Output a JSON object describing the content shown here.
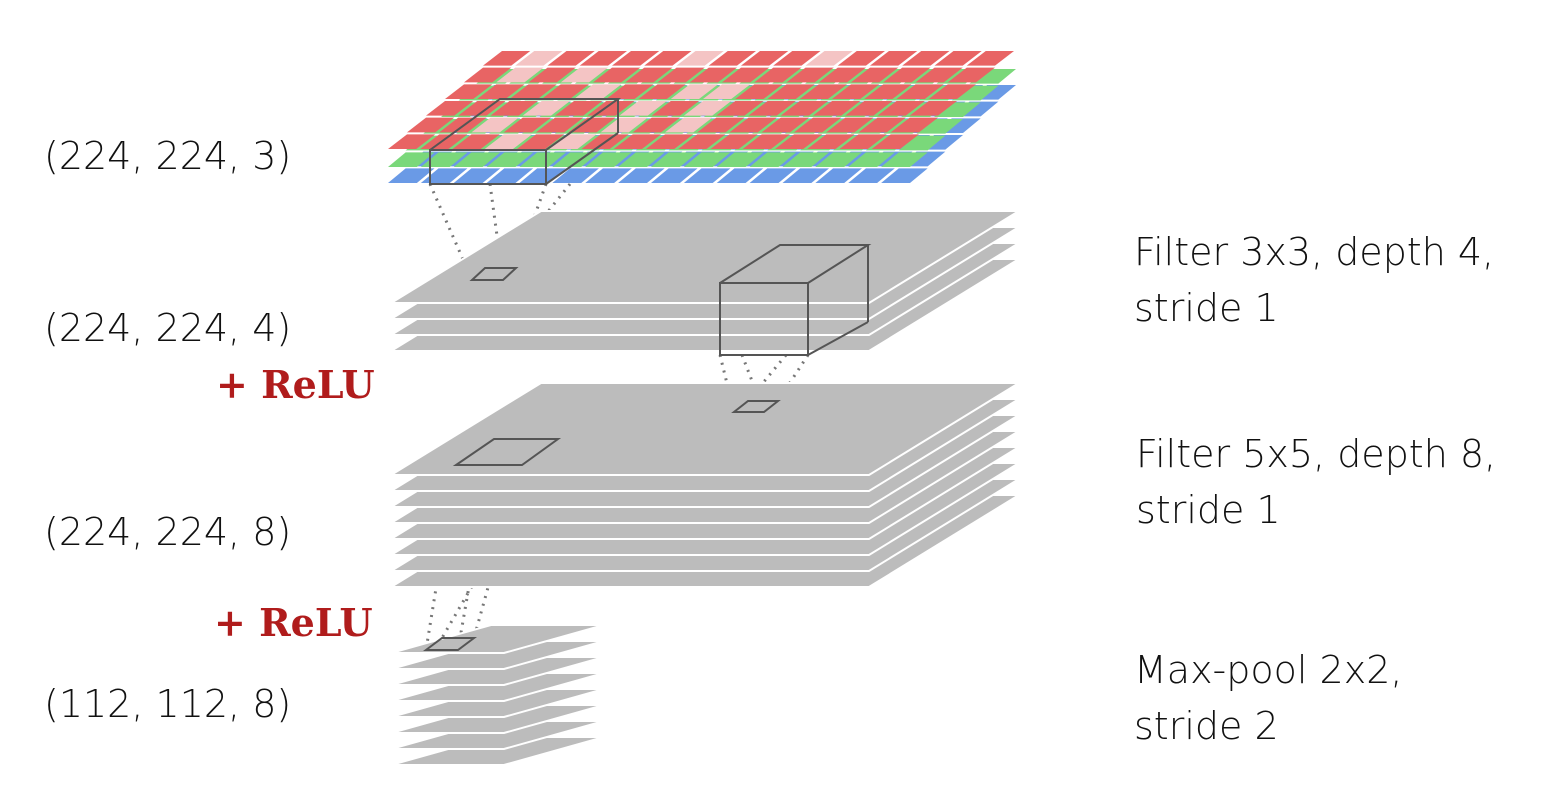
{
  "labels": {
    "input_shape": "(224, 224, 3)",
    "conv1_shape": "(224, 224, 4)",
    "conv2_shape": "(224, 224, 8)",
    "pool_shape": "(112, 112, 8)",
    "relu1": "+ ReLU",
    "relu2": "+ ReLU"
  },
  "operations": {
    "conv1": {
      "line1": "Filter 3x3, depth 4,",
      "line2": "stride 1"
    },
    "conv2": {
      "line1": "Filter 5x5, depth 8,",
      "line2": "stride 1"
    },
    "pool": {
      "line1": "Max-pool 2x2,",
      "line2": "stride 2"
    }
  },
  "colors": {
    "red": "#e86464",
    "pink": "#f4c4c4",
    "green": "#7ad87a",
    "blue": "#6a9ae6",
    "layer_gray": "#bcbcbc",
    "relu": "#b01c1c",
    "box_stroke": "#555555"
  }
}
